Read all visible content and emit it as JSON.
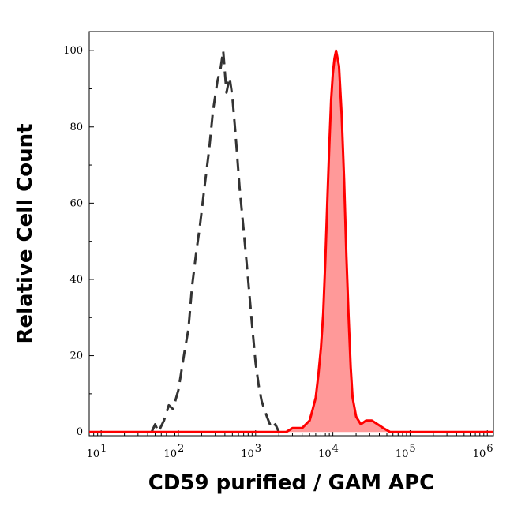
{
  "chart_data": {
    "type": "area",
    "xlabel": "CD59 purified / GAM APC",
    "ylabel": "Relative Cell Count",
    "xscale": "log",
    "xlim": [
      7,
      1200000
    ],
    "ylim": [
      -1,
      105
    ],
    "x_tick_labels": [
      {
        "value": 10,
        "base": "10",
        "exp": "1"
      },
      {
        "value": 100,
        "base": "10",
        "exp": "2"
      },
      {
        "value": 1000,
        "base": "10",
        "exp": "3"
      },
      {
        "value": 10000,
        "base": "10",
        "exp": "4"
      },
      {
        "value": 100000,
        "base": "10",
        "exp": "5"
      },
      {
        "value": 1000000,
        "base": "10",
        "exp": "6"
      }
    ],
    "y_ticks": [
      0,
      20,
      40,
      60,
      80,
      100
    ],
    "y_tick_labels": [
      "0",
      "20",
      "40",
      "60",
      "80",
      "100"
    ],
    "grid": false,
    "legend": "none",
    "series": [
      {
        "style": "dashed",
        "color": "#333333",
        "fill": "none",
        "points": [
          [
            45,
            0
          ],
          [
            50,
            2
          ],
          [
            55,
            0
          ],
          [
            65,
            3
          ],
          [
            75,
            7
          ],
          [
            85,
            6
          ],
          [
            100,
            11
          ],
          [
            120,
            21
          ],
          [
            135,
            27
          ],
          [
            150,
            38
          ],
          [
            170,
            47
          ],
          [
            190,
            54
          ],
          [
            220,
            65
          ],
          [
            250,
            74
          ],
          [
            280,
            84
          ],
          [
            320,
            92
          ],
          [
            350,
            95
          ],
          [
            380,
            100
          ],
          [
            420,
            89
          ],
          [
            460,
            93
          ],
          [
            500,
            88
          ],
          [
            550,
            78
          ],
          [
            620,
            64
          ],
          [
            700,
            53
          ],
          [
            800,
            40
          ],
          [
            900,
            28
          ],
          [
            1000,
            18
          ],
          [
            1100,
            12
          ],
          [
            1200,
            8
          ],
          [
            1400,
            4
          ],
          [
            1600,
            1
          ],
          [
            1800,
            2
          ],
          [
            2000,
            0
          ]
        ]
      },
      {
        "style": "solid",
        "color": "#ff0000",
        "fill": "#ff9999",
        "points": [
          [
            7,
            0
          ],
          [
            1500,
            0
          ],
          [
            2500,
            0
          ],
          [
            3000,
            1
          ],
          [
            4000,
            1
          ],
          [
            5000,
            3
          ],
          [
            5500,
            6
          ],
          [
            6000,
            9
          ],
          [
            6500,
            15
          ],
          [
            7000,
            22
          ],
          [
            7500,
            31
          ],
          [
            8000,
            45
          ],
          [
            8500,
            61
          ],
          [
            9000,
            75
          ],
          [
            9500,
            87
          ],
          [
            10000,
            94
          ],
          [
            10500,
            98
          ],
          [
            11000,
            100
          ],
          [
            12000,
            96
          ],
          [
            13000,
            83
          ],
          [
            14000,
            66
          ],
          [
            15000,
            46
          ],
          [
            16000,
            30
          ],
          [
            17000,
            17
          ],
          [
            18000,
            9
          ],
          [
            20000,
            4
          ],
          [
            23000,
            2
          ],
          [
            27000,
            3
          ],
          [
            32000,
            3
          ],
          [
            38000,
            2
          ],
          [
            45000,
            1
          ],
          [
            55000,
            0
          ],
          [
            1000000,
            0
          ],
          [
            1200000,
            0
          ]
        ]
      }
    ]
  }
}
